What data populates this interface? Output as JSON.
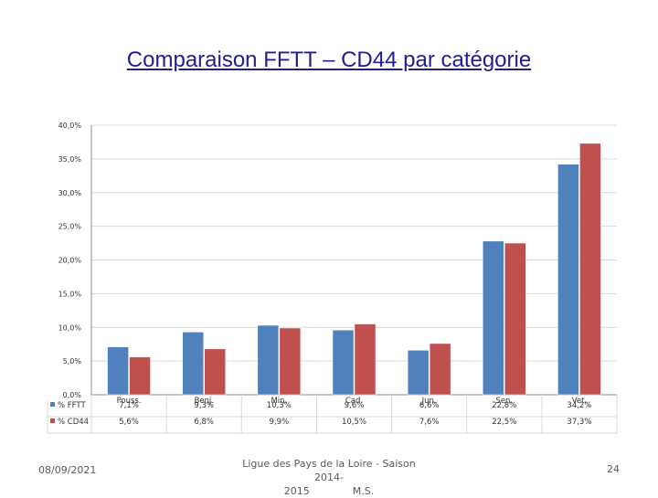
{
  "slide": {
    "title": "Comparaison FFTT – CD44 par catégorie",
    "footer_date": "08/09/2021",
    "footer_center_line1": "Ligue des Pays de la Loire - Saison 2014-",
    "footer_center_year": "2015",
    "footer_center_author": "M.S.",
    "page_number": "24"
  },
  "colors": {
    "fftt": "#4f81bd",
    "cd44": "#c0504d",
    "grid": "#d9d9d9",
    "axis": "#8c8c8c",
    "text": "#333333"
  },
  "chart_data": {
    "type": "bar",
    "categories": [
      "Pouss.",
      "Benj.",
      "Min.",
      "Cad.",
      "Jun.",
      "Sen.",
      "Vet."
    ],
    "series": [
      {
        "name": "% FFTT",
        "values": [
          7.1,
          9.3,
          10.3,
          9.6,
          6.6,
          22.8,
          34.2
        ],
        "labels": [
          "7,1%",
          "9,3%",
          "10,3%",
          "9,6%",
          "6,6%",
          "22,8%",
          "34,2%"
        ]
      },
      {
        "name": "% CD44",
        "values": [
          5.6,
          6.8,
          9.9,
          10.5,
          7.6,
          22.5,
          37.3
        ],
        "labels": [
          "5,6%",
          "6,8%",
          "9,9%",
          "10,5%",
          "7,6%",
          "22,5%",
          "37,3%"
        ]
      }
    ],
    "ylim": [
      0,
      40
    ],
    "yticks": [
      0,
      5,
      10,
      15,
      20,
      25,
      30,
      35,
      40
    ],
    "ytick_labels": [
      "0,0%",
      "5,0%",
      "10,0%",
      "15,0%",
      "20,0%",
      "25,0%",
      "30,0%",
      "35,0%",
      "40,0%"
    ],
    "grid": true,
    "legend": "data-table"
  }
}
